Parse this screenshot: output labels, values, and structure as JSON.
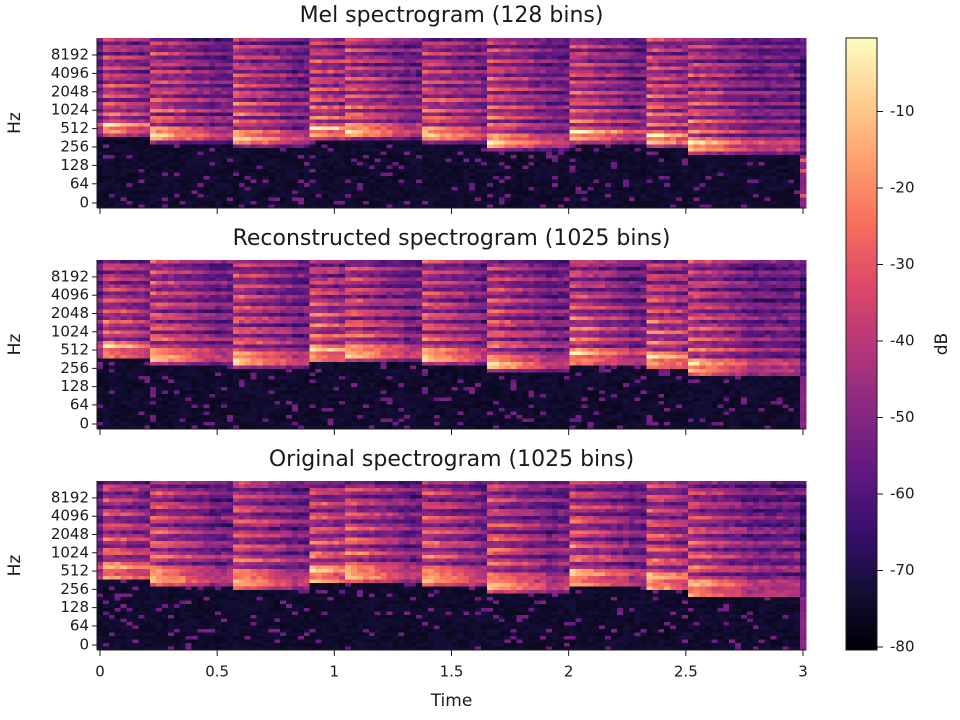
{
  "chart_data": [
    {
      "type": "heatmap",
      "title": "Mel spectrogram (128 bins)",
      "ylabel": "Hz",
      "xlabel": "",
      "xlim": [
        0,
        3
      ],
      "x_ticks": [
        0,
        0.5,
        1,
        1.5,
        2,
        2.5,
        3
      ],
      "x_tick_labels_visible": false,
      "y_ticks": [
        0,
        64,
        128,
        256,
        512,
        1024,
        2048,
        4096,
        8192
      ],
      "y_tick_labels": [
        "0",
        "64",
        "128",
        "256",
        "512",
        "1024",
        "2048",
        "4096",
        "8192"
      ],
      "y_scale": "mel"
    },
    {
      "type": "heatmap",
      "title": "Reconstructed spectrogram (1025 bins)",
      "ylabel": "Hz",
      "xlabel": "",
      "xlim": [
        0,
        3
      ],
      "x_ticks": [
        0,
        0.5,
        1,
        1.5,
        2,
        2.5,
        3
      ],
      "x_tick_labels_visible": false,
      "y_ticks": [
        0,
        64,
        128,
        256,
        512,
        1024,
        2048,
        4096,
        8192
      ],
      "y_tick_labels": [
        "0",
        "64",
        "128",
        "256",
        "512",
        "1024",
        "2048",
        "4096",
        "8192"
      ],
      "y_scale": "log"
    },
    {
      "type": "heatmap",
      "title": "Original spectrogram (1025 bins)",
      "ylabel": "Hz",
      "xlabel": "Time",
      "xlim": [
        0,
        3
      ],
      "x_ticks": [
        0,
        0.5,
        1,
        1.5,
        2,
        2.5,
        3
      ],
      "x_tick_labels": [
        "0",
        "0.5",
        "1",
        "1.5",
        "2",
        "2.5",
        "3"
      ],
      "x_tick_labels_visible": true,
      "y_ticks": [
        0,
        64,
        128,
        256,
        512,
        1024,
        2048,
        4096,
        8192
      ],
      "y_tick_labels": [
        "0",
        "64",
        "128",
        "256",
        "512",
        "1024",
        "2048",
        "4096",
        "8192"
      ],
      "y_scale": "log"
    }
  ],
  "colorbar": {
    "label": "dB",
    "colormap": "magma",
    "range": [
      -80,
      0
    ],
    "ticks": [
      -10,
      -20,
      -30,
      -40,
      -50,
      -60,
      -70,
      -80
    ],
    "tick_labels": [
      "-10",
      "-20",
      "-30",
      "-40",
      "-50",
      "-60",
      "-70",
      "-80"
    ]
  },
  "colors": {
    "axis": "#1a1a1a",
    "background": "#ffffff",
    "magma_stops": [
      "#000004",
      "#140e36",
      "#3b0f70",
      "#641a80",
      "#8c2981",
      "#b73779",
      "#de4968",
      "#f7705c",
      "#fe9f6d",
      "#fecf92",
      "#fcfdbf"
    ]
  },
  "notes": {
    "onsets": [
      0.0,
      0.22,
      0.57,
      0.9,
      1.05,
      1.37,
      1.65,
      2.0,
      2.33,
      2.5
    ]
  }
}
